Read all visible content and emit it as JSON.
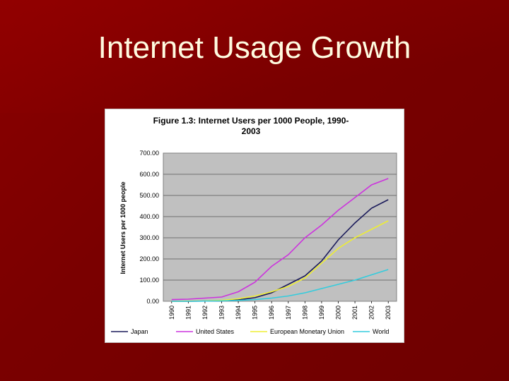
{
  "slide": {
    "title": "Internet Usage Growth"
  },
  "chart_data": {
    "type": "line",
    "title_line1": "Figure 1.3: Internet Users per 1000 People, 1990-",
    "title_line2": "2003",
    "xlabel": "",
    "ylabel": "Internet Users per 1000 people",
    "ylim": [
      0,
      700
    ],
    "yticks": [
      "0.00",
      "100.00",
      "200.00",
      "300.00",
      "400.00",
      "500.00",
      "600.00",
      "700.00"
    ],
    "x": [
      "1990",
      "1991",
      "1992",
      "1993",
      "1994",
      "1995",
      "1996",
      "1997",
      "1998",
      "1999",
      "2000",
      "2001",
      "2002",
      "2003"
    ],
    "grid": "horizontal",
    "legend_position": "bottom",
    "series": [
      {
        "name": "Japan",
        "color": "#1a1a5a",
        "values": [
          0,
          0,
          1,
          2,
          7,
          17,
          40,
          80,
          120,
          190,
          290,
          370,
          440,
          480
        ]
      },
      {
        "name": "United States",
        "color": "#cc33dd",
        "values": [
          8,
          10,
          15,
          20,
          45,
          90,
          165,
          220,
          300,
          360,
          430,
          490,
          550,
          580
        ]
      },
      {
        "name": "European Monetary Union",
        "color": "#eeee33",
        "values": [
          0,
          1,
          2,
          5,
          12,
          25,
          45,
          70,
          110,
          180,
          250,
          300,
          340,
          380
        ]
      },
      {
        "name": "World",
        "color": "#33ccdd",
        "values": [
          0,
          0,
          1,
          2,
          4,
          8,
          15,
          25,
          40,
          60,
          80,
          100,
          125,
          150
        ]
      }
    ]
  }
}
